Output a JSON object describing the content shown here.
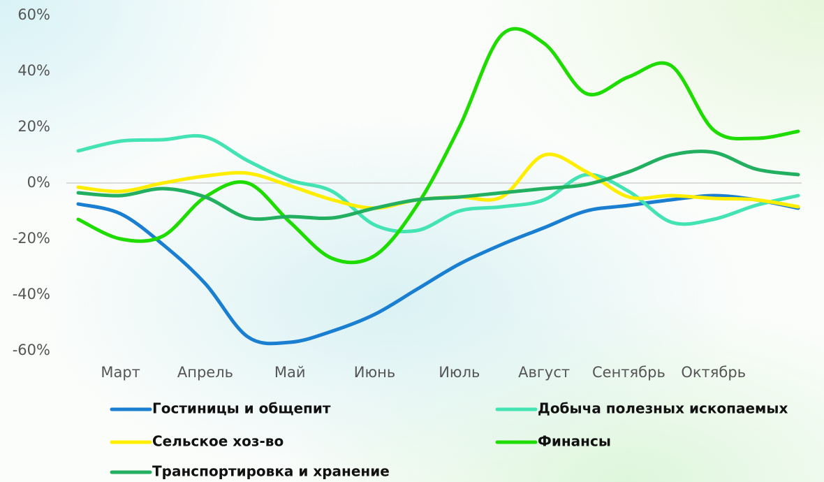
{
  "chart_data": {
    "type": "line",
    "categories": [
      null,
      "Март",
      null,
      "Апрель",
      null,
      "Май",
      null,
      "Июнь",
      null,
      "Июль",
      null,
      "Август",
      null,
      "Сентябрь",
      null,
      "Октябрь",
      null,
      null
    ],
    "ylim": [
      -60,
      60
    ],
    "yticks": [
      {
        "value": 60,
        "label": "60%"
      },
      {
        "value": 40,
        "label": "40%"
      },
      {
        "value": 20,
        "label": "20%"
      },
      {
        "value": 0,
        "label": "0%"
      },
      {
        "value": -20,
        "label": "-20%"
      },
      {
        "value": -40,
        "label": "-40%"
      },
      {
        "value": -60,
        "label": "-60%"
      }
    ],
    "series": [
      {
        "name": "Гостиницы и общепит",
        "color": "#1a7fd0",
        "values": [
          -7.5,
          -11,
          -22,
          -36,
          -55,
          -57,
          -53,
          -47,
          -38,
          -29,
          -22,
          -16,
          -10,
          -8,
          -6,
          -4.5,
          -6,
          -9
        ]
      },
      {
        "name": "Добыча полезных ископаемых",
        "color": "#44e3b3",
        "values": [
          11.5,
          15,
          15.5,
          16.5,
          8,
          1,
          -3,
          -15,
          -17,
          -10,
          -8.5,
          -6,
          3,
          -3,
          -14,
          -13,
          -8,
          -4.5
        ]
      },
      {
        "name": "Сельское хоз-во",
        "color": "#ffee00",
        "values": [
          -1.5,
          -3,
          0,
          2.5,
          3.5,
          -1,
          -6,
          -9,
          -6,
          -5,
          -5,
          10,
          4,
          -5,
          -4.5,
          -5.5,
          -6,
          -8.5
        ]
      },
      {
        "name": "Финансы",
        "color": "#1fdc00",
        "values": [
          -13,
          -20,
          -19,
          -5,
          0,
          -14,
          -27,
          -26,
          -8,
          20,
          53,
          50,
          32,
          38,
          42,
          19,
          16,
          18.5
        ]
      },
      {
        "name": "Транспортировка и хранение",
        "color": "#22b060",
        "values": [
          -3.5,
          -4.5,
          -2,
          -5,
          -12.5,
          -12,
          -12.5,
          -9,
          -6,
          -5,
          -3.5,
          -2,
          -0.5,
          4,
          10,
          11,
          5,
          3
        ]
      }
    ],
    "legend": "bottom"
  }
}
